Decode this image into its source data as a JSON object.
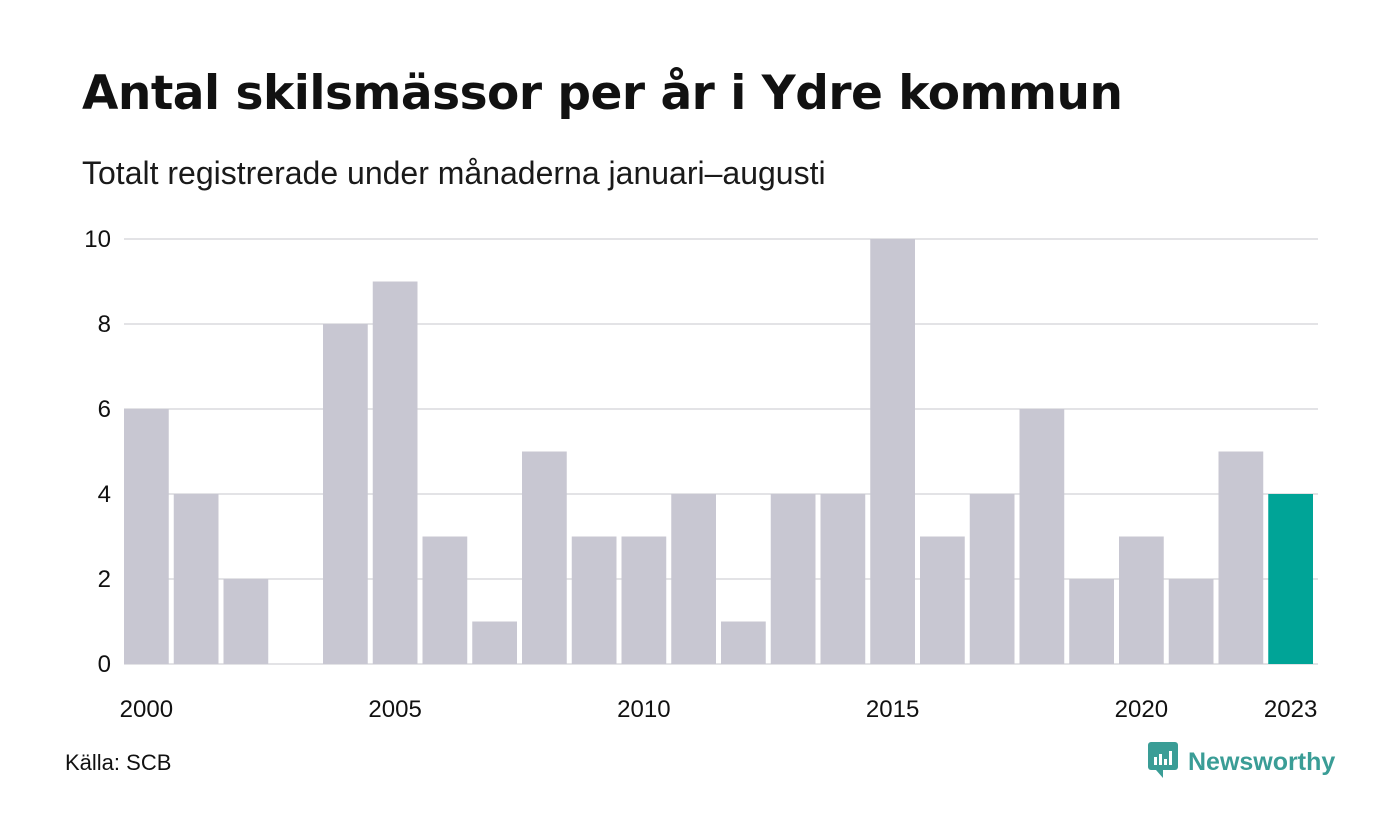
{
  "title": "Antal skilsmässor per år i Ydre kommun",
  "subtitle": "Totalt registrerade under månaderna januari–augusti",
  "source": "Källa: SCB",
  "brand": {
    "name": "Newsworthy",
    "icon": "newsworthy-logo-icon",
    "color": "#3a9d96"
  },
  "colors": {
    "bar": "#c8c7d2",
    "highlight": "#00a497",
    "grid": "#e3e3e6"
  },
  "chart_data": {
    "type": "bar",
    "categories": [
      "2000",
      "2001",
      "2002",
      "2003",
      "2004",
      "2005",
      "2006",
      "2007",
      "2008",
      "2009",
      "2010",
      "2011",
      "2012",
      "2013",
      "2014",
      "2015",
      "2016",
      "2017",
      "2018",
      "2019",
      "2020",
      "2021",
      "2022",
      "2023"
    ],
    "values": [
      6,
      4,
      2,
      0,
      8,
      9,
      3,
      1,
      5,
      3,
      3,
      4,
      1,
      4,
      4,
      10,
      3,
      4,
      6,
      2,
      3,
      2,
      5,
      4
    ],
    "highlight_category": "2023",
    "x_tick_labels": [
      "2000",
      "2005",
      "2010",
      "2015",
      "2020",
      "2023"
    ],
    "y_ticks": [
      0,
      2,
      4,
      6,
      8,
      10
    ],
    "ylim": [
      0,
      10
    ],
    "xlabel": "",
    "ylabel": "",
    "grid": true,
    "legend": "none"
  }
}
